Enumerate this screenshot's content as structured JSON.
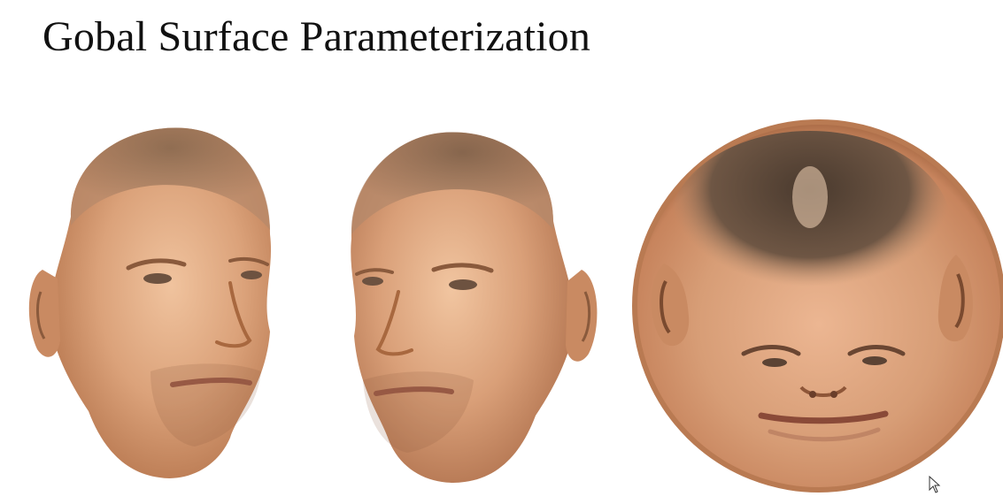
{
  "slide": {
    "title": "Gobal Surface Parameterization"
  },
  "figures": [
    {
      "name": "textured-face-left-view"
    },
    {
      "name": "textured-face-right-view"
    },
    {
      "name": "spherical-face-parameterization"
    }
  ],
  "colors": {
    "background": "#ffffff",
    "title": "#111111",
    "skin_light": "#e9b48e",
    "skin_mid": "#c98a62",
    "skin_dark": "#8a5a3c",
    "hair": "#5a4838",
    "sphere_rim": "#c7845d"
  },
  "icons": {
    "cursor": "mouse-pointer-icon"
  }
}
